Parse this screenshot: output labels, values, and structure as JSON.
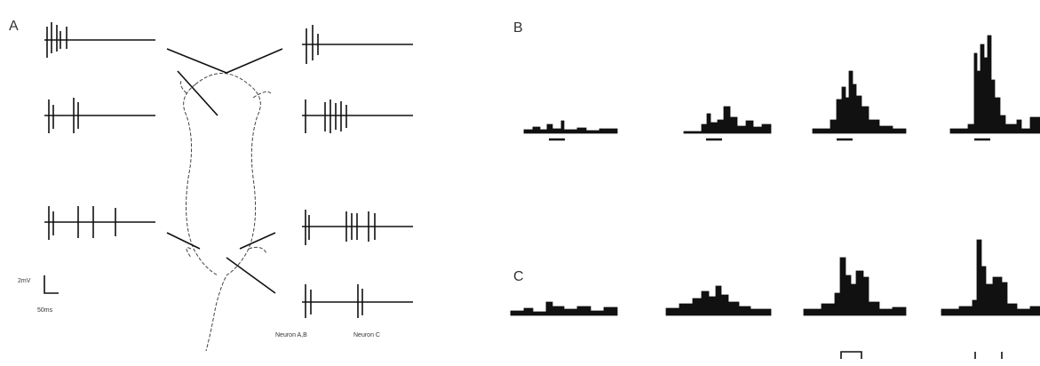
{
  "panels": {
    "a": {
      "label": "A",
      "scale_voltage": "2mV",
      "scale_time": "50ms",
      "neuron_labels": [
        "Neuron A,B",
        "Neuron C"
      ]
    },
    "b": {
      "label": "B"
    },
    "c": {
      "label": "C"
    }
  }
}
